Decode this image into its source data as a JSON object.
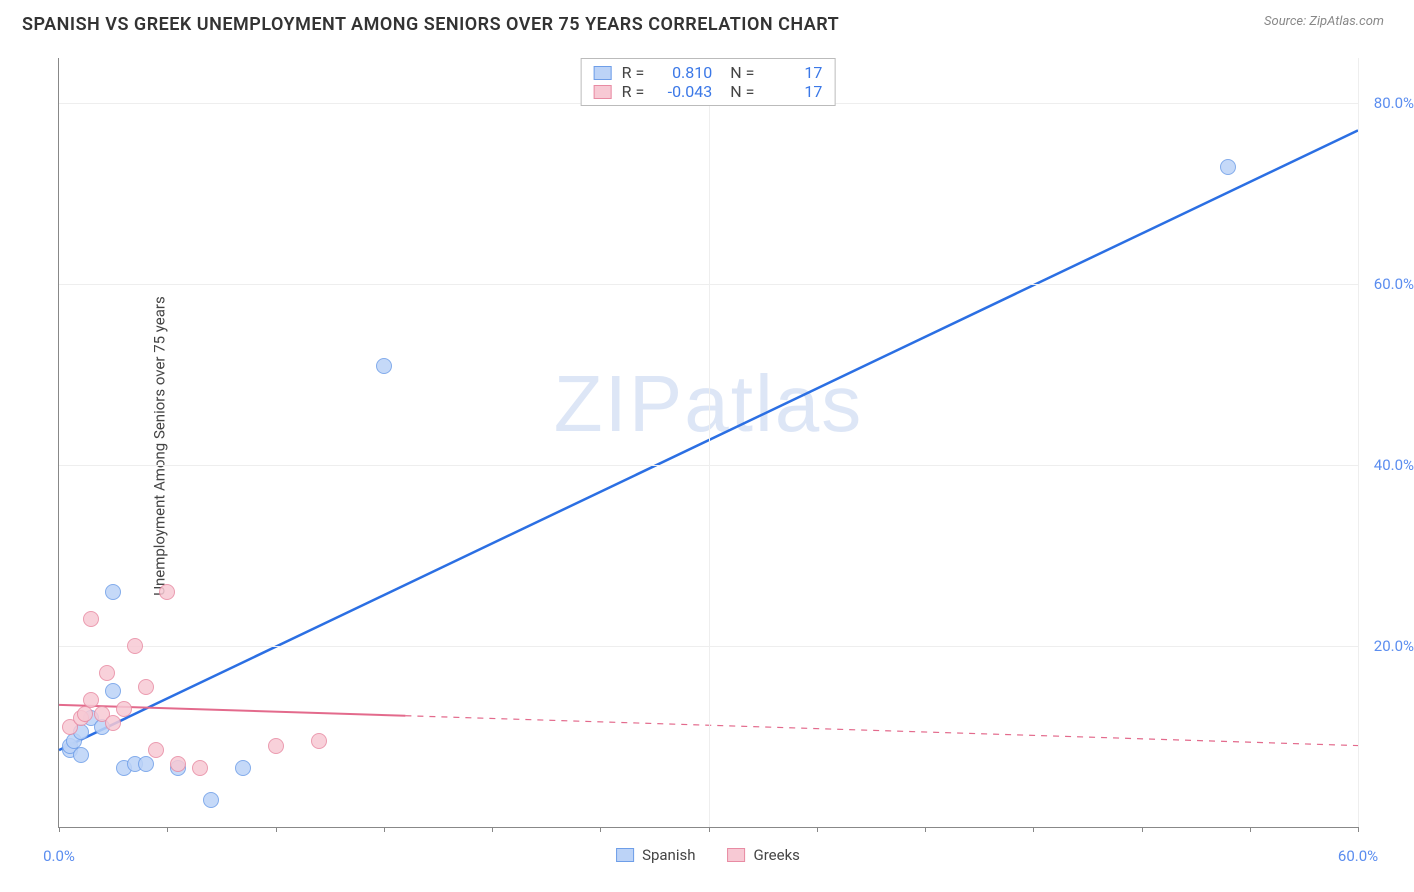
{
  "title": "SPANISH VS GREEK UNEMPLOYMENT AMONG SENIORS OVER 75 YEARS CORRELATION CHART",
  "source": "Source: ZipAtlas.com",
  "y_axis_label": "Unemployment Among Seniors over 75 years",
  "watermark": "ZIPatlas",
  "chart": {
    "type": "scatter-with-regression",
    "xlim": [
      0,
      60
    ],
    "ylim": [
      0,
      85
    ],
    "x_ticks": [
      0,
      30,
      60
    ],
    "x_tick_labels": [
      "0.0%",
      "",
      "60.0%"
    ],
    "x_minor_step": 5,
    "y_ticks": [
      20,
      40,
      60,
      80
    ],
    "y_tick_labels": [
      "20.0%",
      "40.0%",
      "60.0%",
      "80.0%"
    ],
    "y_label_color": "#5b8def",
    "x_label_color": "#5b8def",
    "background": "#ffffff",
    "grid_color": "#eeeeee",
    "axis_color": "#888888",
    "marker_radius": 8,
    "series": [
      {
        "name": "Spanish",
        "fill": "#bcd3f7",
        "stroke": "#6e9ee8",
        "line_color": "#2b6fe3",
        "line_width": 2.5,
        "r_value": "0.810",
        "n_value": "17",
        "regression": {
          "x1": 0,
          "y1": 8.5,
          "x2": 60,
          "y2": 77,
          "solid_until_x": 60
        },
        "points": [
          {
            "x": 0.5,
            "y": 8.5
          },
          {
            "x": 0.5,
            "y": 9
          },
          {
            "x": 0.7,
            "y": 9.5
          },
          {
            "x": 1,
            "y": 8
          },
          {
            "x": 1,
            "y": 10.5
          },
          {
            "x": 1.5,
            "y": 12
          },
          {
            "x": 2,
            "y": 11
          },
          {
            "x": 2.5,
            "y": 15
          },
          {
            "x": 2.5,
            "y": 26
          },
          {
            "x": 3,
            "y": 6.5
          },
          {
            "x": 3.5,
            "y": 7
          },
          {
            "x": 4,
            "y": 7
          },
          {
            "x": 5.5,
            "y": 6.5
          },
          {
            "x": 7,
            "y": 3
          },
          {
            "x": 8.5,
            "y": 6.5
          },
          {
            "x": 15,
            "y": 51
          },
          {
            "x": 54,
            "y": 73
          }
        ]
      },
      {
        "name": "Greeks",
        "fill": "#f7c9d4",
        "stroke": "#e88ba3",
        "line_color": "#e36a8c",
        "line_width": 2,
        "r_value": "-0.043",
        "n_value": "17",
        "regression": {
          "x1": 0,
          "y1": 13.5,
          "x2": 60,
          "y2": 9,
          "solid_until_x": 16
        },
        "points": [
          {
            "x": 0.5,
            "y": 11
          },
          {
            "x": 1,
            "y": 12
          },
          {
            "x": 1.2,
            "y": 12.5
          },
          {
            "x": 1.5,
            "y": 14
          },
          {
            "x": 1.5,
            "y": 23
          },
          {
            "x": 2,
            "y": 12.5
          },
          {
            "x": 2.2,
            "y": 17
          },
          {
            "x": 2.5,
            "y": 11.5
          },
          {
            "x": 3,
            "y": 13
          },
          {
            "x": 3.5,
            "y": 20
          },
          {
            "x": 4,
            "y": 15.5
          },
          {
            "x": 4.5,
            "y": 8.5
          },
          {
            "x": 5,
            "y": 26
          },
          {
            "x": 5.5,
            "y": 7
          },
          {
            "x": 6.5,
            "y": 6.5
          },
          {
            "x": 10,
            "y": 9
          },
          {
            "x": 12,
            "y": 9.5
          }
        ]
      }
    ],
    "legend_x": {
      "items": [
        {
          "label": "Spanish",
          "fill": "#bcd3f7",
          "stroke": "#6e9ee8"
        },
        {
          "label": "Greeks",
          "fill": "#f7c9d4",
          "stroke": "#e88ba3"
        }
      ]
    }
  }
}
